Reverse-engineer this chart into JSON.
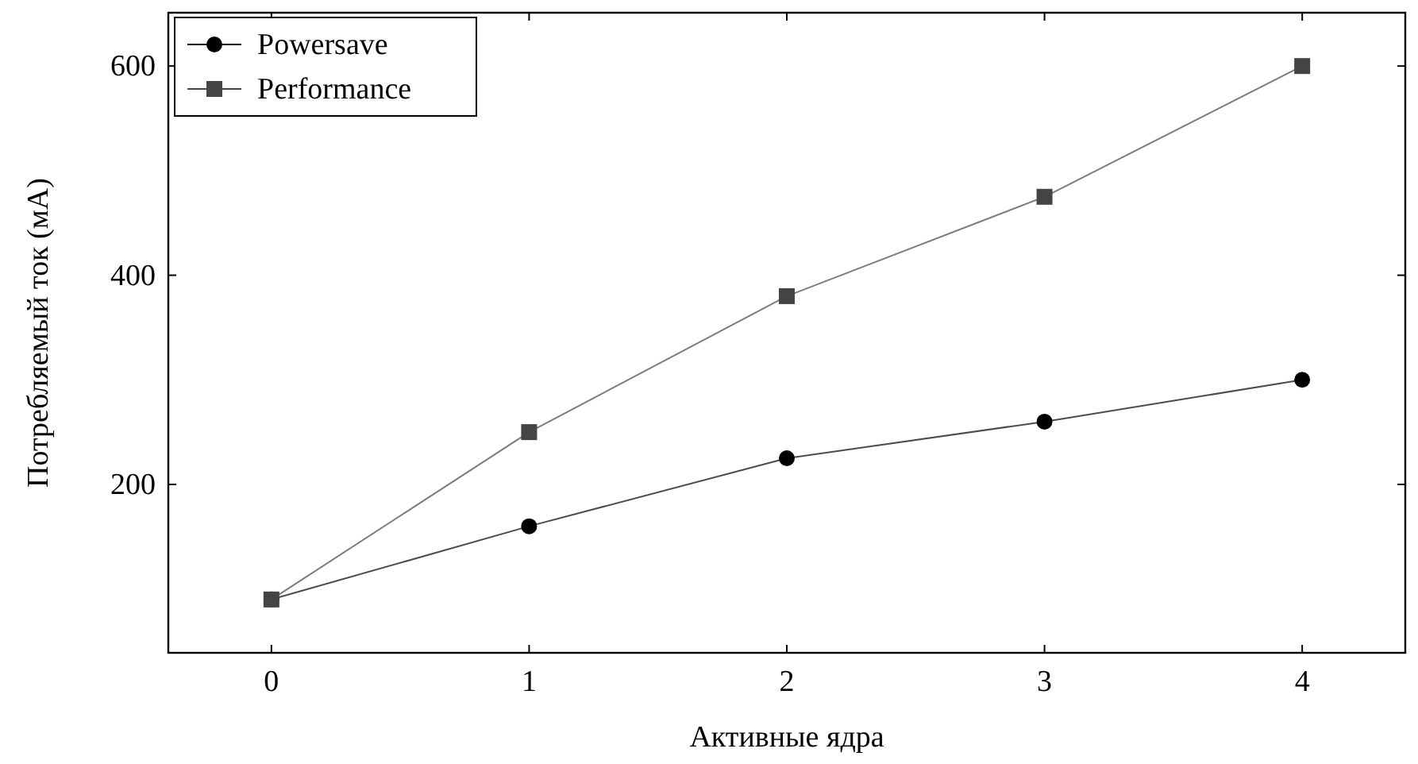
{
  "chart_data": {
    "type": "line",
    "xlabel": "Активные ядра",
    "ylabel": "Потребляемый ток (мА)",
    "x": [
      0,
      1,
      2,
      3,
      4
    ],
    "xlim": [
      -0.4,
      4.4
    ],
    "xticks": [
      0,
      1,
      2,
      3,
      4
    ],
    "ylim": [
      39,
      651
    ],
    "yticks": [
      200,
      400,
      600
    ],
    "legend": "top left",
    "grid": false,
    "series": [
      {
        "name": "Powersave",
        "color": "#000000",
        "marker": "circle",
        "values": [
          90,
          160,
          225,
          260,
          300
        ]
      },
      {
        "name": "Performance",
        "color": "#444444",
        "marker": "square",
        "values": [
          90,
          250,
          380,
          475,
          600
        ]
      }
    ]
  }
}
